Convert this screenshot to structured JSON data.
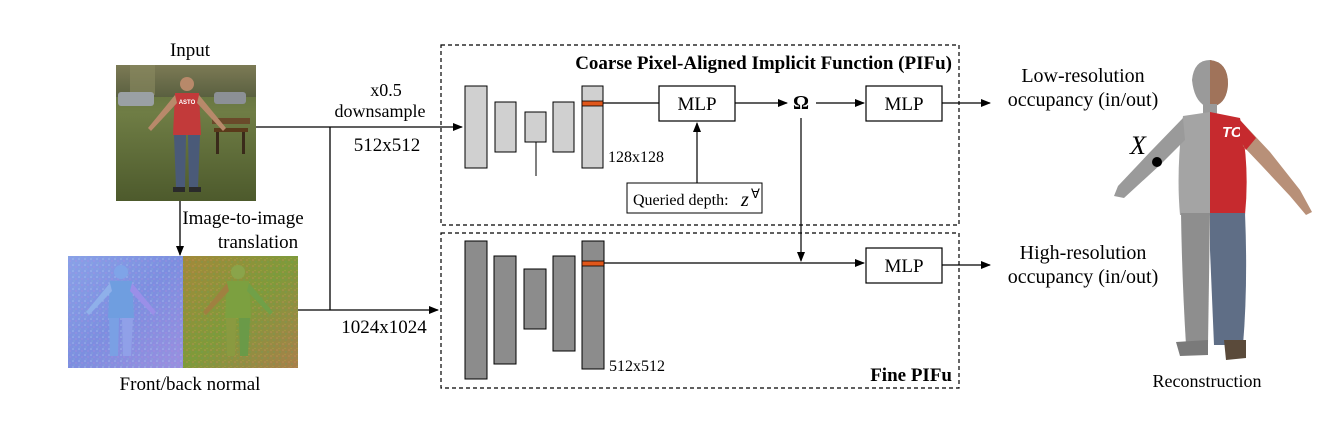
{
  "labels": {
    "input": "Input",
    "image_to_image_line1": "Image-to-image",
    "image_to_image_line2": "translation",
    "front_back_normal": "Front/back normal",
    "downsample_line1": "x0.5",
    "downsample_line2": "downsample",
    "res_512": "512x512",
    "res_1024": "1024x1024",
    "coarse_title": "Coarse Pixel-Aligned Implicit Function (PIFu)",
    "fine_title": "Fine PIFu",
    "coarse_feat": "128x128",
    "fine_feat": "512x512",
    "mlp": "MLP",
    "omega": "Ω",
    "queried_depth": "Queried depth:",
    "queried_symbol": "z",
    "queried_superscript": "∀",
    "low_res_line1": "Low-resolution",
    "low_res_line2": "occupancy (in/out)",
    "high_res_line1": "High-resolution",
    "high_res_line2": "occupancy (in/out)",
    "point_x": "X",
    "reconstruction": "Reconstruction",
    "shirt_text": "ASTO",
    "shirt_text_3d": "TO"
  },
  "colors": {
    "coarse_encoder": "#d0d0d0",
    "fine_encoder": "#8c8c8c",
    "feature_highlight": "#e0571b",
    "shirt_red": "#c62a2e",
    "mesh_gray": "#9a9a9a",
    "normal_blue": "#7f8fd8",
    "normal_green": "#8a9a3a"
  }
}
